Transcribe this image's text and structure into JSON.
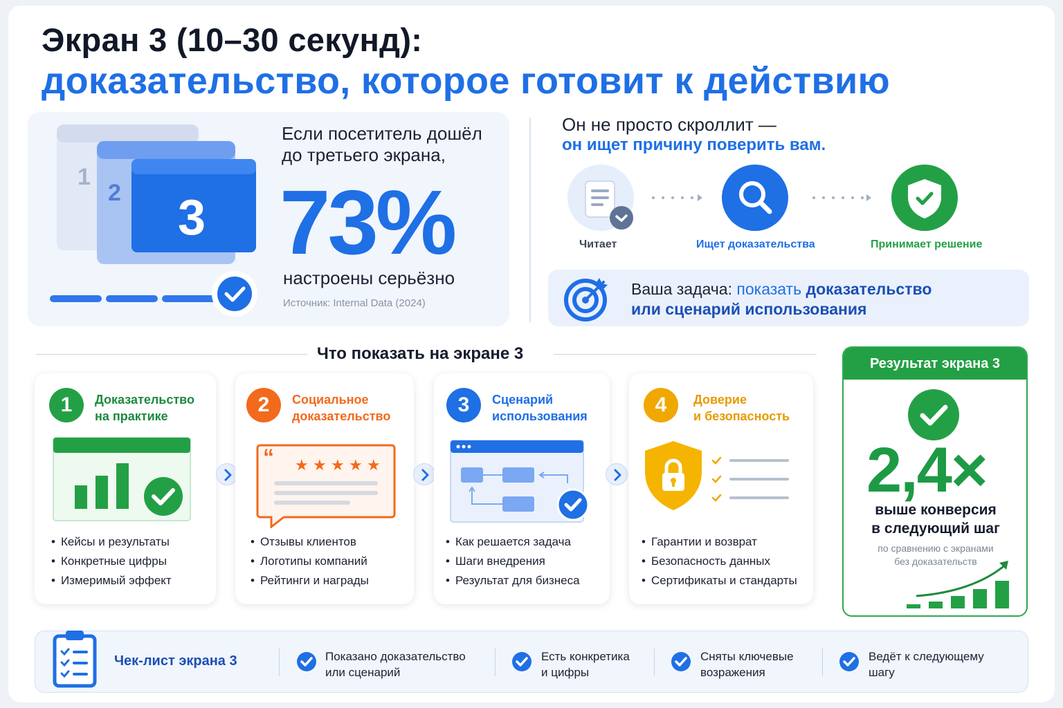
{
  "header": {
    "title_line1": "Экран 3 (10–30 секунд):",
    "title_line2": "доказательство, которое готовит к действию"
  },
  "stat": {
    "lead": "Если посетитель дошёл до третьего экрана,",
    "value": "73%",
    "caption": "настроены серьёзно",
    "source": "Источник: Internal Data (2024)",
    "screen_labels": [
      "1",
      "2",
      "3"
    ]
  },
  "journey": {
    "lead": "Он не просто скроллит —",
    "lead_accent": "он ищет причину поверить вам.",
    "steps": [
      {
        "label": "Читает",
        "icon": "document-icon",
        "color": "#3d4658"
      },
      {
        "label": "Ищет доказательства",
        "icon": "search-icon",
        "color": "#1f6fe5"
      },
      {
        "label": "Принимает решение",
        "icon": "shield-check-icon",
        "color": "#23a046"
      }
    ]
  },
  "task": {
    "prefix": "Ваша задача: ",
    "mid": "показать ",
    "bold": "доказательство",
    "line2": "или сценарий использования"
  },
  "section": {
    "title": "Что показать на экране 3"
  },
  "cards": [
    {
      "num": "1",
      "title_l1": "Доказательство",
      "title_l2": "на практике",
      "color": "#23a046",
      "bullets": [
        "Кейсы и результаты",
        "Конкретные цифры",
        "Измеримый эффект"
      ]
    },
    {
      "num": "2",
      "title_l1": "Социальное",
      "title_l2": "доказательство",
      "color": "#f26a1b",
      "bullets": [
        "Отзывы клиентов",
        "Логотипы компаний",
        "Рейтинги и награды"
      ]
    },
    {
      "num": "3",
      "title_l1": "Сценарий",
      "title_l2": "использования",
      "color": "#1f6fe5",
      "bullets": [
        "Как решается задача",
        "Шаги внедрения",
        "Результат для бизнеса"
      ]
    },
    {
      "num": "4",
      "title_l1": "Доверие",
      "title_l2": "и безопасность",
      "color": "#f0a800",
      "bullets": [
        "Гарантии и возврат",
        "Безопасность данных",
        "Сертификаты и стандарты"
      ]
    }
  ],
  "result": {
    "header": "Результат экрана 3",
    "value": "2,4×",
    "text_l1": "выше конверсия",
    "text_l2": "в следующий шаг",
    "note_l1": "по сравнению с экранами",
    "note_l2": "без доказательств"
  },
  "checklist": {
    "title": "Чек-лист экрана 3",
    "items": [
      {
        "l1": "Показано доказательство",
        "l2": "или сценарий"
      },
      {
        "l1": "Есть конкретика",
        "l2": "и цифры"
      },
      {
        "l1": "Сняты ключевые",
        "l2": "возражения"
      },
      {
        "l1": "Ведёт к следующему",
        "l2": "шагу"
      }
    ]
  },
  "colors": {
    "accent": "#1f6fe5",
    "green": "#23a046",
    "orange": "#f26a1b",
    "yellow": "#f0a800"
  }
}
